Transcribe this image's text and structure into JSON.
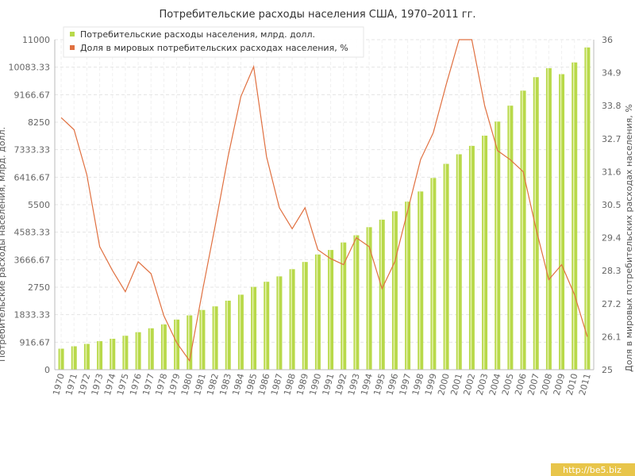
{
  "chart_data": {
    "type": "bar+line",
    "title": "Потребительские расходы населения США, 1970–2011 гг.",
    "categories": [
      "1970",
      "1971",
      "1972",
      "1973",
      "1974",
      "1975",
      "1976",
      "1977",
      "1978",
      "1979",
      "1980",
      "1981",
      "1982",
      "1983",
      "1984",
      "1985",
      "1986",
      "1987",
      "1988",
      "1989",
      "1990",
      "1991",
      "1992",
      "1993",
      "1994",
      "1995",
      "1996",
      "1997",
      "1998",
      "1999",
      "2000",
      "2001",
      "2002",
      "2003",
      "2004",
      "2005",
      "2006",
      "2007",
      "2008",
      "2009",
      "2010",
      "2011"
    ],
    "series": [
      {
        "name": "Потребительские расходы населения, млрд. долл.",
        "type": "bar",
        "axis": "left",
        "color": "#b8d94a",
        "values": [
          700,
          780,
          860,
          950,
          1030,
          1130,
          1250,
          1380,
          1510,
          1670,
          1810,
          1990,
          2110,
          2300,
          2500,
          2760,
          2930,
          3110,
          3350,
          3590,
          3840,
          3990,
          4240,
          4480,
          4750,
          5000,
          5280,
          5600,
          5940,
          6390,
          6860,
          7180,
          7460,
          7800,
          8270,
          8800,
          9300,
          9750,
          10050,
          9850,
          10240,
          10740
        ]
      },
      {
        "name": "Доля в мировых потребительских расходах населения, %",
        "type": "line",
        "axis": "right",
        "color": "#e07040",
        "values": [
          33.4,
          33.0,
          31.5,
          29.1,
          28.3,
          27.6,
          28.6,
          28.2,
          26.8,
          25.9,
          25.3,
          27.6,
          29.8,
          32.1,
          34.1,
          35.1,
          32.1,
          30.4,
          29.7,
          30.4,
          29.0,
          28.7,
          28.5,
          29.4,
          29.1,
          27.7,
          28.6,
          30.3,
          32.0,
          32.9,
          34.5,
          36.0,
          36.0,
          33.8,
          32.3,
          32.0,
          31.6,
          29.7,
          28.0,
          28.5,
          27.5,
          26.1
        ]
      }
    ],
    "y_left": {
      "label": "Потребительские расходы населения, млрд. долл.",
      "min": 0,
      "max": 11000,
      "ticks": [
        "0",
        "916.67",
        "1833.33",
        "2750",
        "3666.67",
        "4583.33",
        "5500",
        "6416.67",
        "7333.33",
        "8250",
        "9166.67",
        "10083.33",
        "11000"
      ]
    },
    "y_right": {
      "label": "Доля в мировых потребительских расходах населения, %",
      "min": 25,
      "max": 36,
      "ticks": [
        "25",
        "26.1",
        "27.2",
        "28.3",
        "29.4",
        "30.5",
        "31.6",
        "32.7",
        "33.8",
        "34.9",
        "36"
      ]
    },
    "grid": true,
    "legend_position": "top-left"
  },
  "watermark": "http://be5.biz"
}
